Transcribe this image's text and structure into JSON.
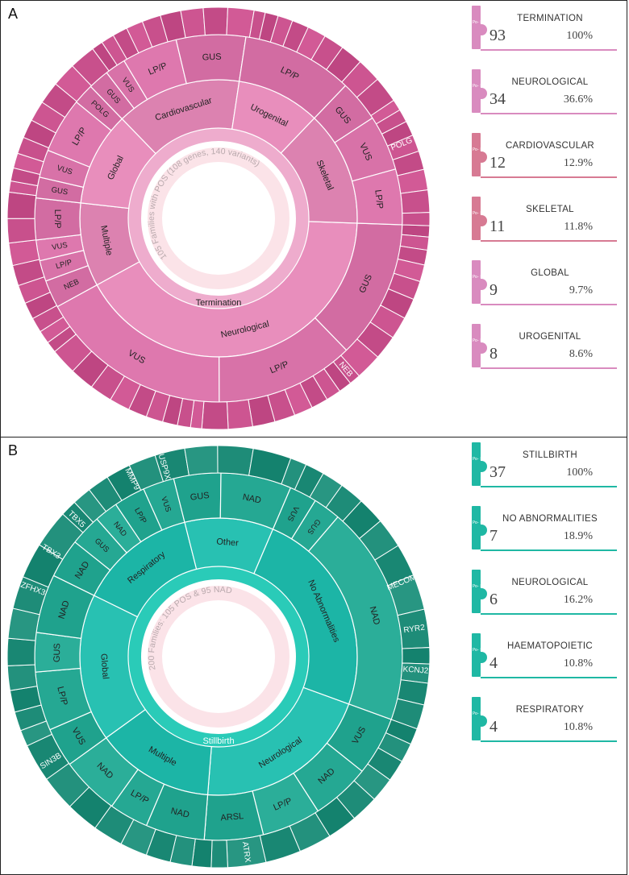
{
  "chart_data": [
    {
      "type": "sunburst",
      "panel": "A",
      "center_label": "105 Families with POS (108 genes, 140 variants)",
      "root": "Termination",
      "ring1": [
        {
          "name": "Neurological",
          "value": 34
        },
        {
          "name": "Multiple",
          "value": 8
        },
        {
          "name": "Global",
          "value": 9
        },
        {
          "name": "Cardiovascular",
          "value": 12
        },
        {
          "name": "Urogenital",
          "value": 8
        },
        {
          "name": "Skeletal",
          "value": 11
        }
      ],
      "ring2": [
        {
          "parent": "Neurological",
          "name": "GUS",
          "value": 10
        },
        {
          "parent": "Neurological",
          "name": "LP/P",
          "value": 10
        },
        {
          "parent": "Neurological",
          "name": "VUS",
          "value": 14
        },
        {
          "parent": "Multiple",
          "name": "NEB",
          "value": 2
        },
        {
          "parent": "Multiple",
          "name": "LP/P",
          "value": 1.5
        },
        {
          "parent": "Multiple",
          "name": "VUS",
          "value": 1.5
        },
        {
          "parent": "Multiple",
          "name": "LP/P",
          "value": 3
        },
        {
          "parent": "Global",
          "name": "GUS",
          "value": 1.5
        },
        {
          "parent": "Global",
          "name": "VUS",
          "value": 2
        },
        {
          "parent": "Global",
          "name": "LP/P",
          "value": 4
        },
        {
          "parent": "Global",
          "name": "POLG",
          "value": 1.5
        },
        {
          "parent": "Cardiovascular",
          "name": "GUS",
          "value": 1.5
        },
        {
          "parent": "Cardiovascular",
          "name": "VUS",
          "value": 1.5
        },
        {
          "parent": "Cardiovascular",
          "name": "LP/P",
          "value": 4
        },
        {
          "parent": "Cardiovascular",
          "name": "GUS",
          "value": 5
        },
        {
          "parent": "Urogenital",
          "name": "LP/P",
          "value": 8
        },
        {
          "parent": "Skeletal",
          "name": "GUS",
          "value": 3
        },
        {
          "parent": "Skeletal",
          "name": "VUS",
          "value": 4
        },
        {
          "parent": "Skeletal",
          "name": "LP/P",
          "value": 4
        }
      ],
      "ring3_labels": [
        "POLG",
        "NEB"
      ],
      "legend": [
        {
          "category": "TERMINATION",
          "count": "93",
          "percent": "100%"
        },
        {
          "category": "NEUROLOGICAL",
          "count": "34",
          "percent": "36.6%"
        },
        {
          "category": "CARDIOVASCULAR",
          "count": "12",
          "percent": "12.9%"
        },
        {
          "category": "SKELETAL",
          "count": "11",
          "percent": "11.8%"
        },
        {
          "category": "GLOBAL",
          "count": "9",
          "percent": "9.7%"
        },
        {
          "category": "UROGENITAL",
          "count": "8",
          "percent": "8.6%"
        }
      ]
    },
    {
      "type": "sunburst",
      "panel": "B",
      "center_label": "200 Families: 105 POS & 95 NAD",
      "root": "Stillbirth",
      "ring1": [
        {
          "name": "Neurological",
          "value": 6
        },
        {
          "name": "Multiple",
          "value": 4
        },
        {
          "name": "Global",
          "value": 5
        },
        {
          "name": "Respiratory",
          "value": 4
        },
        {
          "name": "Other",
          "value": 3
        },
        {
          "name": "No Abnormalities",
          "value": 7
        }
      ],
      "ring2": [
        {
          "parent": "Neurological",
          "name": "VUS",
          "value": 1.5
        },
        {
          "parent": "Neurological",
          "name": "NAD",
          "value": 1.5
        },
        {
          "parent": "Neurological",
          "name": "LP/P",
          "value": 1.5
        },
        {
          "parent": "Neurological",
          "name": "ARSL",
          "value": 1.5
        },
        {
          "parent": "Multiple",
          "name": "NAD",
          "value": 1.5
        },
        {
          "parent": "Multiple",
          "name": "LP/P",
          "value": 1
        },
        {
          "parent": "Multiple",
          "name": "NAD",
          "value": 1.5
        },
        {
          "parent": "Global",
          "name": "VUS",
          "value": 1
        },
        {
          "parent": "Global",
          "name": "LP/P",
          "value": 1.5
        },
        {
          "parent": "Global",
          "name": "GUS",
          "value": 1
        },
        {
          "parent": "Global",
          "name": "NAD",
          "value": 1.5
        },
        {
          "parent": "Respiratory",
          "name": "NAD",
          "value": 1
        },
        {
          "parent": "Respiratory",
          "name": "GUS",
          "value": 0.8
        },
        {
          "parent": "Respiratory",
          "name": "NAD",
          "value": 0.6
        },
        {
          "parent": "Respiratory",
          "name": "LP/P",
          "value": 0.8
        },
        {
          "parent": "Respiratory",
          "name": "VUS",
          "value": 0.8
        },
        {
          "parent": "Other",
          "name": "GUS",
          "value": 1.2
        },
        {
          "parent": "Other",
          "name": "NAD",
          "value": 1.8
        },
        {
          "parent": "No Abnormalities",
          "name": "VUS",
          "value": 0.7
        },
        {
          "parent": "No Abnormalities",
          "name": "GUS",
          "value": 0.7
        },
        {
          "parent": "No Abnormalities",
          "name": "NAD",
          "value": 5.6
        }
      ],
      "ring3_labels": [
        "ATRX",
        "MECOM",
        "RYR2",
        "KCNJ2",
        "MMP9",
        "USP9X",
        "TBX5",
        "TBX3",
        "ZFHX3",
        "SIN3B"
      ],
      "legend": [
        {
          "category": "STILLBIRTH",
          "count": "37",
          "percent": "100%"
        },
        {
          "category": "NO ABNORMALITIES",
          "count": "7",
          "percent": "18.9%"
        },
        {
          "category": "NEUROLOGICAL",
          "count": "6",
          "percent": "16.2%"
        },
        {
          "category": "HAEMATOPOIETIC",
          "count": "4",
          "percent": "10.8%"
        },
        {
          "category": "RESPIRATORY",
          "count": "4",
          "percent": "10.8%"
        }
      ]
    }
  ],
  "panels": {
    "a_letter": "A",
    "b_letter": "B"
  },
  "card_tab_text": "Po-\nIS:",
  "colors": {
    "a_outer": "#c8508c",
    "a_mid": "#d872a8",
    "a_inner": "#e48ab8",
    "a_root": "#eeaccd",
    "a_center": "#fbe3e8",
    "a_card": "#d98bbf",
    "a_card_alt": "#d77a93",
    "b_outer": "#1e8c78",
    "b_mid": "#25a893",
    "b_inner": "#24bdae",
    "b_root": "#2acbb8",
    "b_center": "#fbe3e8",
    "b_card": "#1fb8a4"
  }
}
